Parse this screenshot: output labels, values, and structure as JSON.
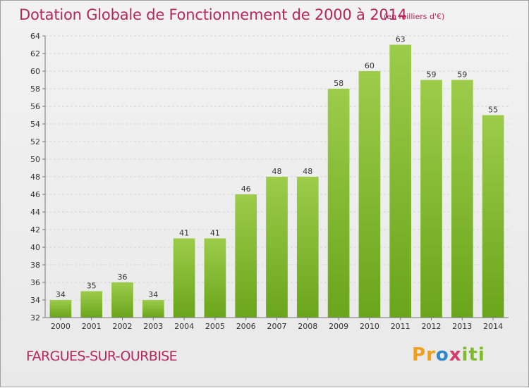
{
  "chart_data": {
    "type": "bar",
    "title": "Dotation Globale de Fonctionnement de 2000 à 2014",
    "subtitle": "(en milliers d'€)",
    "categories": [
      "2000",
      "2001",
      "2002",
      "2003",
      "2004",
      "2005",
      "2006",
      "2007",
      "2008",
      "2009",
      "2010",
      "2011",
      "2012",
      "2013",
      "2014"
    ],
    "values": [
      34,
      35,
      36,
      34,
      41,
      41,
      46,
      48,
      48,
      58,
      60,
      63,
      59,
      59,
      55
    ],
    "ylim": [
      32,
      64
    ],
    "ytick_step": 2,
    "xlabel": "",
    "ylabel": "",
    "grid": true,
    "bar_color": "#7dbb2a"
  },
  "footer": {
    "commune": "FARGUES-SUR-OURBISE",
    "logo": [
      "P",
      "r",
      "o",
      "x",
      "i",
      "t",
      "i"
    ],
    "logo_colors": [
      "#f0a020",
      "#f0a020",
      "#2f86c8",
      "#d23b6a",
      "#7dbb2a",
      "#7dbb2a",
      "#7dbb2a"
    ]
  }
}
